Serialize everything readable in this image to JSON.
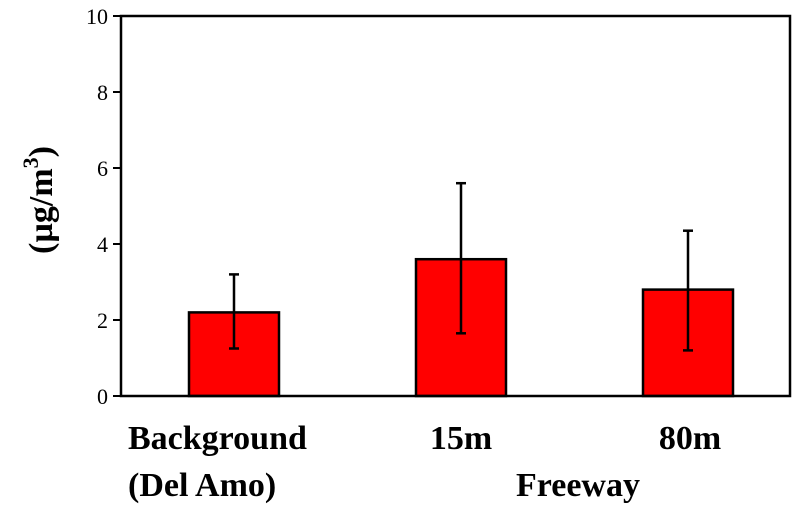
{
  "chart_data": {
    "type": "bar",
    "title": "",
    "xlabel": "",
    "ylabel": "(µg/m",
    "ylabel_superscript": "3",
    "ylabel_close": ")",
    "ylim": [
      0,
      10
    ],
    "yticks": [
      0,
      2,
      4,
      6,
      8,
      10
    ],
    "categories": [
      "Background\n(Del Amo)",
      "15m",
      "80m"
    ],
    "category_lines": [
      [
        "Background",
        "(Del Amo)"
      ],
      [
        "15m"
      ],
      [
        "80m"
      ]
    ],
    "group_label": "Freeway",
    "values": [
      2.2,
      3.6,
      2.8
    ],
    "error_low": [
      1.25,
      1.65,
      1.2
    ],
    "error_high": [
      3.2,
      5.6,
      4.35
    ],
    "bar_color": "#ff0000",
    "grid": false,
    "legend": "none"
  }
}
